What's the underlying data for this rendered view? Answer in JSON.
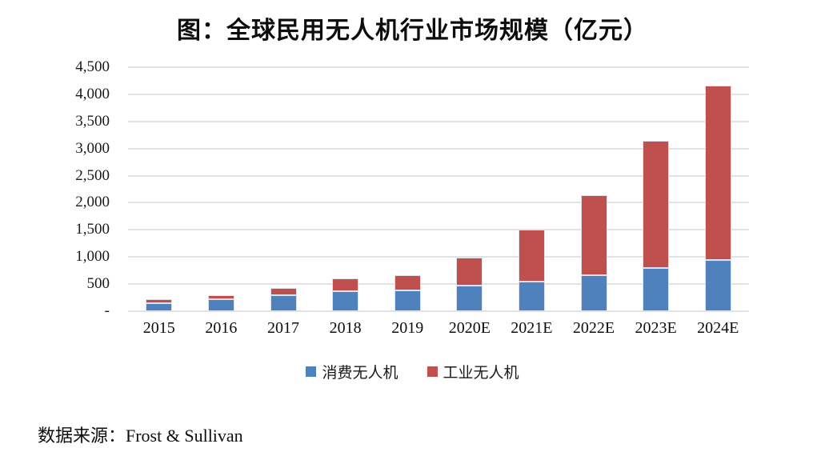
{
  "title": "图：全球民用无人机行业市场规模（亿元）",
  "source": "数据来源：Frost & Sullivan",
  "legend": {
    "items": [
      {
        "label": "消费无人机",
        "color": "#4f81bd"
      },
      {
        "label": "工业无人机",
        "color": "#c0504d"
      }
    ]
  },
  "chart_data": {
    "type": "bar",
    "stacked": true,
    "title": "图：全球民用无人机行业市场规模（亿元）",
    "categories": [
      "2015",
      "2016",
      "2017",
      "2018",
      "2019",
      "2020E",
      "2021E",
      "2022E",
      "2023E",
      "2024E"
    ],
    "series": [
      {
        "name": "消费无人机",
        "color": "#4f81bd",
        "values": [
          150,
          215,
          290,
          375,
          385,
          465,
          550,
          660,
          790,
          945
        ]
      },
      {
        "name": "工业无人机",
        "color": "#c0504d",
        "values": [
          70,
          75,
          140,
          230,
          275,
          525,
          955,
          1480,
          2360,
          3210
        ]
      }
    ],
    "totals": [
      220,
      290,
      430,
      605,
      660,
      990,
      1505,
      2140,
      3150,
      4155
    ],
    "xlabel": "",
    "ylabel": "",
    "ylim": [
      0,
      4500
    ],
    "ytick_interval": 500,
    "ytick_labels": [
      "-",
      "500",
      "1,000",
      "1,500",
      "2,000",
      "2,500",
      "3,000",
      "3,500",
      "4,000",
      "4,500"
    ],
    "grid": true,
    "gridline_color": "#e2e2e4",
    "legend_position": "bottom",
    "source": "数据来源：Frost & Sullivan"
  }
}
